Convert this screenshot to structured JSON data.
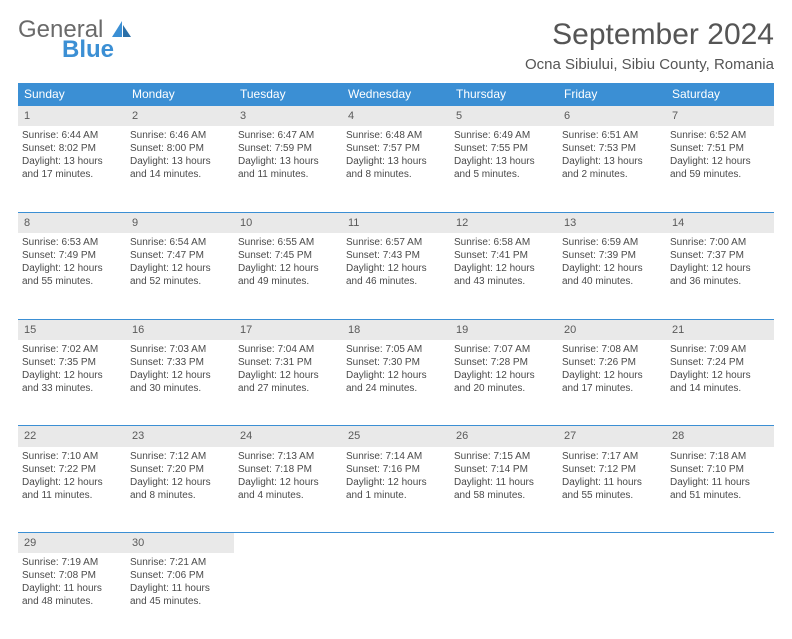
{
  "brand": {
    "name1": "General",
    "name2": "Blue"
  },
  "header": {
    "month_title": "September 2024",
    "location": "Ocna Sibiului, Sibiu County, Romania"
  },
  "colors": {
    "header_bg": "#3b8fd4",
    "daynum_bg": "#e9e9e9",
    "text": "#4a4a4a",
    "border": "#3b8fd4"
  },
  "day_headers": [
    "Sunday",
    "Monday",
    "Tuesday",
    "Wednesday",
    "Thursday",
    "Friday",
    "Saturday"
  ],
  "weeks": [
    [
      {
        "n": "1",
        "sr": "Sunrise: 6:44 AM",
        "ss": "Sunset: 8:02 PM",
        "d1": "Daylight: 13 hours",
        "d2": "and 17 minutes."
      },
      {
        "n": "2",
        "sr": "Sunrise: 6:46 AM",
        "ss": "Sunset: 8:00 PM",
        "d1": "Daylight: 13 hours",
        "d2": "and 14 minutes."
      },
      {
        "n": "3",
        "sr": "Sunrise: 6:47 AM",
        "ss": "Sunset: 7:59 PM",
        "d1": "Daylight: 13 hours",
        "d2": "and 11 minutes."
      },
      {
        "n": "4",
        "sr": "Sunrise: 6:48 AM",
        "ss": "Sunset: 7:57 PM",
        "d1": "Daylight: 13 hours",
        "d2": "and 8 minutes."
      },
      {
        "n": "5",
        "sr": "Sunrise: 6:49 AM",
        "ss": "Sunset: 7:55 PM",
        "d1": "Daylight: 13 hours",
        "d2": "and 5 minutes."
      },
      {
        "n": "6",
        "sr": "Sunrise: 6:51 AM",
        "ss": "Sunset: 7:53 PM",
        "d1": "Daylight: 13 hours",
        "d2": "and 2 minutes."
      },
      {
        "n": "7",
        "sr": "Sunrise: 6:52 AM",
        "ss": "Sunset: 7:51 PM",
        "d1": "Daylight: 12 hours",
        "d2": "and 59 minutes."
      }
    ],
    [
      {
        "n": "8",
        "sr": "Sunrise: 6:53 AM",
        "ss": "Sunset: 7:49 PM",
        "d1": "Daylight: 12 hours",
        "d2": "and 55 minutes."
      },
      {
        "n": "9",
        "sr": "Sunrise: 6:54 AM",
        "ss": "Sunset: 7:47 PM",
        "d1": "Daylight: 12 hours",
        "d2": "and 52 minutes."
      },
      {
        "n": "10",
        "sr": "Sunrise: 6:55 AM",
        "ss": "Sunset: 7:45 PM",
        "d1": "Daylight: 12 hours",
        "d2": "and 49 minutes."
      },
      {
        "n": "11",
        "sr": "Sunrise: 6:57 AM",
        "ss": "Sunset: 7:43 PM",
        "d1": "Daylight: 12 hours",
        "d2": "and 46 minutes."
      },
      {
        "n": "12",
        "sr": "Sunrise: 6:58 AM",
        "ss": "Sunset: 7:41 PM",
        "d1": "Daylight: 12 hours",
        "d2": "and 43 minutes."
      },
      {
        "n": "13",
        "sr": "Sunrise: 6:59 AM",
        "ss": "Sunset: 7:39 PM",
        "d1": "Daylight: 12 hours",
        "d2": "and 40 minutes."
      },
      {
        "n": "14",
        "sr": "Sunrise: 7:00 AM",
        "ss": "Sunset: 7:37 PM",
        "d1": "Daylight: 12 hours",
        "d2": "and 36 minutes."
      }
    ],
    [
      {
        "n": "15",
        "sr": "Sunrise: 7:02 AM",
        "ss": "Sunset: 7:35 PM",
        "d1": "Daylight: 12 hours",
        "d2": "and 33 minutes."
      },
      {
        "n": "16",
        "sr": "Sunrise: 7:03 AM",
        "ss": "Sunset: 7:33 PM",
        "d1": "Daylight: 12 hours",
        "d2": "and 30 minutes."
      },
      {
        "n": "17",
        "sr": "Sunrise: 7:04 AM",
        "ss": "Sunset: 7:31 PM",
        "d1": "Daylight: 12 hours",
        "d2": "and 27 minutes."
      },
      {
        "n": "18",
        "sr": "Sunrise: 7:05 AM",
        "ss": "Sunset: 7:30 PM",
        "d1": "Daylight: 12 hours",
        "d2": "and 24 minutes."
      },
      {
        "n": "19",
        "sr": "Sunrise: 7:07 AM",
        "ss": "Sunset: 7:28 PM",
        "d1": "Daylight: 12 hours",
        "d2": "and 20 minutes."
      },
      {
        "n": "20",
        "sr": "Sunrise: 7:08 AM",
        "ss": "Sunset: 7:26 PM",
        "d1": "Daylight: 12 hours",
        "d2": "and 17 minutes."
      },
      {
        "n": "21",
        "sr": "Sunrise: 7:09 AM",
        "ss": "Sunset: 7:24 PM",
        "d1": "Daylight: 12 hours",
        "d2": "and 14 minutes."
      }
    ],
    [
      {
        "n": "22",
        "sr": "Sunrise: 7:10 AM",
        "ss": "Sunset: 7:22 PM",
        "d1": "Daylight: 12 hours",
        "d2": "and 11 minutes."
      },
      {
        "n": "23",
        "sr": "Sunrise: 7:12 AM",
        "ss": "Sunset: 7:20 PM",
        "d1": "Daylight: 12 hours",
        "d2": "and 8 minutes."
      },
      {
        "n": "24",
        "sr": "Sunrise: 7:13 AM",
        "ss": "Sunset: 7:18 PM",
        "d1": "Daylight: 12 hours",
        "d2": "and 4 minutes."
      },
      {
        "n": "25",
        "sr": "Sunrise: 7:14 AM",
        "ss": "Sunset: 7:16 PM",
        "d1": "Daylight: 12 hours",
        "d2": "and 1 minute."
      },
      {
        "n": "26",
        "sr": "Sunrise: 7:15 AM",
        "ss": "Sunset: 7:14 PM",
        "d1": "Daylight: 11 hours",
        "d2": "and 58 minutes."
      },
      {
        "n": "27",
        "sr": "Sunrise: 7:17 AM",
        "ss": "Sunset: 7:12 PM",
        "d1": "Daylight: 11 hours",
        "d2": "and 55 minutes."
      },
      {
        "n": "28",
        "sr": "Sunrise: 7:18 AM",
        "ss": "Sunset: 7:10 PM",
        "d1": "Daylight: 11 hours",
        "d2": "and 51 minutes."
      }
    ],
    [
      {
        "n": "29",
        "sr": "Sunrise: 7:19 AM",
        "ss": "Sunset: 7:08 PM",
        "d1": "Daylight: 11 hours",
        "d2": "and 48 minutes."
      },
      {
        "n": "30",
        "sr": "Sunrise: 7:21 AM",
        "ss": "Sunset: 7:06 PM",
        "d1": "Daylight: 11 hours",
        "d2": "and 45 minutes."
      },
      null,
      null,
      null,
      null,
      null
    ]
  ]
}
